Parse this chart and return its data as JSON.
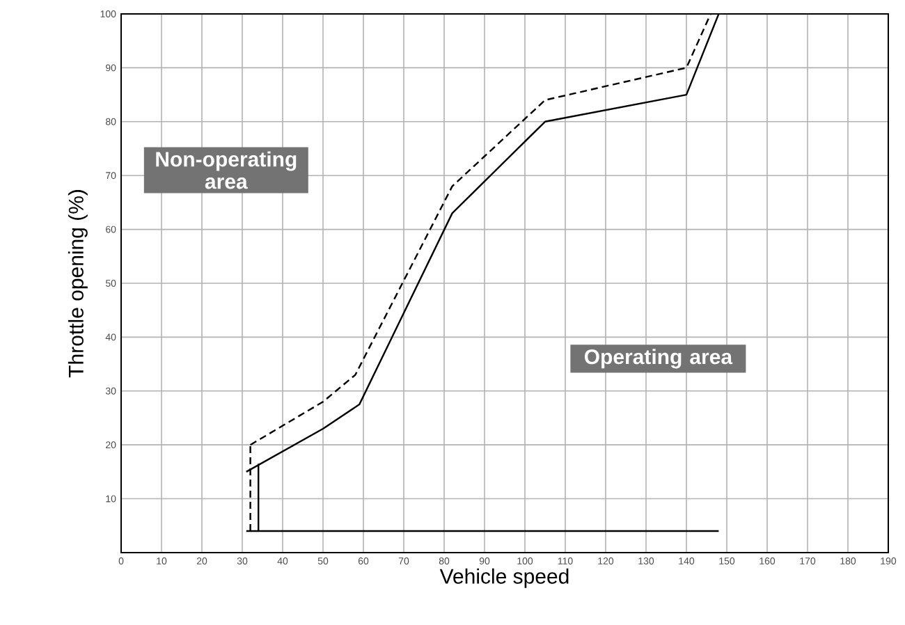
{
  "chart_data": {
    "type": "line",
    "xlabel": "Vehicle speed",
    "ylabel": "Throttle opening (%)",
    "xlim": [
      0,
      190
    ],
    "ylim": [
      0,
      100
    ],
    "xticks": [
      0,
      10,
      20,
      30,
      40,
      50,
      60,
      70,
      80,
      90,
      100,
      110,
      120,
      130,
      140,
      150,
      160,
      170,
      180,
      190
    ],
    "yticks": [
      10,
      20,
      30,
      40,
      50,
      60,
      70,
      80,
      90,
      100
    ],
    "grid": true,
    "marker": "none",
    "series": [
      {
        "color": "#000000",
        "line_style": "solid",
        "x": [
          31,
          50,
          59,
          82,
          105,
          140,
          148
        ],
        "values": [
          15,
          23,
          27.5,
          63,
          80,
          85,
          100
        ]
      },
      {
        "color": "#000000",
        "line_style": "dashed",
        "x": [
          32,
          50,
          58,
          82,
          105,
          140,
          146
        ],
        "values": [
          20,
          28,
          33,
          68,
          84,
          90,
          100
        ]
      },
      {
        "color": "#000000",
        "line_style": "solid",
        "x": [
          34,
          34
        ],
        "values": [
          4,
          16.5
        ]
      },
      {
        "color": "#000000",
        "line_style": "dashed",
        "x": [
          32,
          32
        ],
        "values": [
          4,
          20
        ]
      },
      {
        "color": "#000000",
        "line_style": "solid",
        "x": [
          31,
          148
        ],
        "values": [
          4,
          4
        ]
      }
    ],
    "annotations": [
      "Non-operating area",
      "Operating area"
    ]
  }
}
